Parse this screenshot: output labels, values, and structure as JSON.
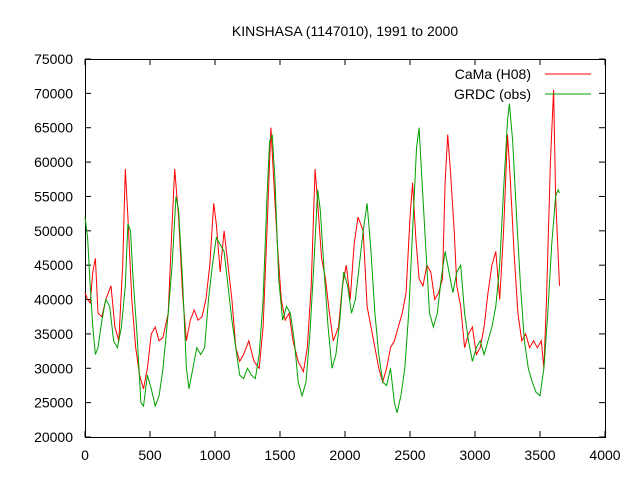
{
  "chart_data": {
    "type": "line",
    "title": "KINSHASA (1147010), 1991 to 2000",
    "xlabel": "",
    "ylabel": "",
    "xlim": [
      0,
      4000
    ],
    "ylim": [
      20000,
      75000
    ],
    "x_ticks": [
      0,
      500,
      1000,
      1500,
      2000,
      2500,
      3000,
      3500,
      4000
    ],
    "y_ticks": [
      20000,
      25000,
      30000,
      35000,
      40000,
      45000,
      50000,
      55000,
      60000,
      65000,
      70000,
      75000
    ],
    "grid": false,
    "legend_position": "top-right",
    "series": [
      {
        "name": "CaMa (H08)",
        "color": "#ff0000",
        "points": [
          [
            0,
            41000
          ],
          [
            20,
            40000
          ],
          [
            40,
            39500
          ],
          [
            60,
            44000
          ],
          [
            80,
            46000
          ],
          [
            100,
            38000
          ],
          [
            130,
            37500
          ],
          [
            160,
            40000
          ],
          [
            200,
            42000
          ],
          [
            230,
            36000
          ],
          [
            260,
            34000
          ],
          [
            290,
            45000
          ],
          [
            310,
            59000
          ],
          [
            330,
            52000
          ],
          [
            360,
            40000
          ],
          [
            390,
            33000
          ],
          [
            420,
            29000
          ],
          [
            450,
            27000
          ],
          [
            480,
            30000
          ],
          [
            510,
            35000
          ],
          [
            540,
            36000
          ],
          [
            570,
            34000
          ],
          [
            600,
            34500
          ],
          [
            640,
            38000
          ],
          [
            670,
            51000
          ],
          [
            690,
            59000
          ],
          [
            720,
            52000
          ],
          [
            750,
            41000
          ],
          [
            780,
            34000
          ],
          [
            810,
            37000
          ],
          [
            840,
            38500
          ],
          [
            870,
            37000
          ],
          [
            900,
            37500
          ],
          [
            930,
            40000
          ],
          [
            960,
            45000
          ],
          [
            990,
            54000
          ],
          [
            1010,
            51000
          ],
          [
            1040,
            44000
          ],
          [
            1070,
            50000
          ],
          [
            1100,
            45000
          ],
          [
            1130,
            40000
          ],
          [
            1160,
            33000
          ],
          [
            1190,
            31000
          ],
          [
            1220,
            32000
          ],
          [
            1260,
            34000
          ],
          [
            1300,
            31000
          ],
          [
            1340,
            30000
          ],
          [
            1370,
            36000
          ],
          [
            1400,
            50000
          ],
          [
            1430,
            65000
          ],
          [
            1450,
            58000
          ],
          [
            1480,
            48000
          ],
          [
            1510,
            40000
          ],
          [
            1540,
            37000
          ],
          [
            1570,
            38000
          ],
          [
            1600,
            34000
          ],
          [
            1640,
            31000
          ],
          [
            1680,
            29500
          ],
          [
            1710,
            33000
          ],
          [
            1740,
            42000
          ],
          [
            1770,
            59000
          ],
          [
            1790,
            54000
          ],
          [
            1820,
            46000
          ],
          [
            1850,
            43000
          ],
          [
            1880,
            38000
          ],
          [
            1910,
            34000
          ],
          [
            1950,
            36000
          ],
          [
            1980,
            42000
          ],
          [
            2010,
            45000
          ],
          [
            2040,
            40000
          ],
          [
            2070,
            48000
          ],
          [
            2100,
            52000
          ],
          [
            2140,
            50000
          ],
          [
            2170,
            39000
          ],
          [
            2200,
            36000
          ],
          [
            2230,
            33000
          ],
          [
            2260,
            30000
          ],
          [
            2290,
            28000
          ],
          [
            2320,
            30000
          ],
          [
            2350,
            33000
          ],
          [
            2380,
            34000
          ],
          [
            2410,
            36000
          ],
          [
            2440,
            38000
          ],
          [
            2470,
            41000
          ],
          [
            2500,
            52000
          ],
          [
            2520,
            57000
          ],
          [
            2545,
            49000
          ],
          [
            2570,
            43000
          ],
          [
            2600,
            42000
          ],
          [
            2630,
            45000
          ],
          [
            2660,
            44000
          ],
          [
            2690,
            40000
          ],
          [
            2720,
            41000
          ],
          [
            2750,
            43000
          ],
          [
            2770,
            57000
          ],
          [
            2790,
            64000
          ],
          [
            2810,
            59000
          ],
          [
            2840,
            50000
          ],
          [
            2860,
            42000
          ],
          [
            2890,
            39000
          ],
          [
            2920,
            33000
          ],
          [
            2950,
            35000
          ],
          [
            2980,
            36000
          ],
          [
            3010,
            32000
          ],
          [
            3040,
            33000
          ],
          [
            3070,
            36000
          ],
          [
            3100,
            41000
          ],
          [
            3130,
            45000
          ],
          [
            3160,
            47000
          ],
          [
            3190,
            40000
          ],
          [
            3220,
            50000
          ],
          [
            3250,
            64000
          ],
          [
            3270,
            58000
          ],
          [
            3300,
            47000
          ],
          [
            3330,
            38000
          ],
          [
            3360,
            34000
          ],
          [
            3390,
            35000
          ],
          [
            3420,
            33000
          ],
          [
            3450,
            34000
          ],
          [
            3480,
            33000
          ],
          [
            3510,
            34000
          ],
          [
            3530,
            30000
          ],
          [
            3550,
            40000
          ],
          [
            3580,
            60000
          ],
          [
            3605,
            70500
          ],
          [
            3620,
            55000
          ],
          [
            3650,
            42000
          ]
        ]
      },
      {
        "name": "GRDC (obs)",
        "color": "#00a000",
        "points": [
          [
            0,
            52000
          ],
          [
            20,
            49000
          ],
          [
            40,
            42000
          ],
          [
            60,
            36000
          ],
          [
            80,
            32000
          ],
          [
            100,
            33000
          ],
          [
            130,
            37000
          ],
          [
            160,
            40000
          ],
          [
            190,
            39000
          ],
          [
            220,
            34000
          ],
          [
            250,
            33000
          ],
          [
            280,
            36000
          ],
          [
            310,
            42000
          ],
          [
            330,
            51000
          ],
          [
            350,
            50000
          ],
          [
            370,
            43000
          ],
          [
            400,
            35000
          ],
          [
            430,
            25000
          ],
          [
            450,
            24500
          ],
          [
            480,
            29000
          ],
          [
            510,
            27000
          ],
          [
            540,
            24500
          ],
          [
            570,
            26000
          ],
          [
            600,
            30000
          ],
          [
            640,
            38000
          ],
          [
            670,
            45000
          ],
          [
            700,
            55000
          ],
          [
            720,
            53000
          ],
          [
            750,
            43000
          ],
          [
            780,
            30000
          ],
          [
            800,
            27000
          ],
          [
            830,
            30000
          ],
          [
            860,
            33000
          ],
          [
            890,
            32000
          ],
          [
            920,
            33000
          ],
          [
            950,
            40000
          ],
          [
            980,
            45000
          ],
          [
            1010,
            49000
          ],
          [
            1040,
            48000
          ],
          [
            1070,
            47000
          ],
          [
            1100,
            42000
          ],
          [
            1130,
            37000
          ],
          [
            1160,
            33000
          ],
          [
            1190,
            29000
          ],
          [
            1220,
            28500
          ],
          [
            1250,
            30000
          ],
          [
            1280,
            29000
          ],
          [
            1310,
            28500
          ],
          [
            1340,
            32000
          ],
          [
            1370,
            40000
          ],
          [
            1400,
            55000
          ],
          [
            1420,
            63000
          ],
          [
            1440,
            64000
          ],
          [
            1460,
            58000
          ],
          [
            1490,
            43000
          ],
          [
            1520,
            37000
          ],
          [
            1550,
            39000
          ],
          [
            1580,
            38000
          ],
          [
            1610,
            34000
          ],
          [
            1640,
            28000
          ],
          [
            1670,
            26000
          ],
          [
            1700,
            28000
          ],
          [
            1730,
            35000
          ],
          [
            1760,
            45000
          ],
          [
            1790,
            56000
          ],
          [
            1810,
            53000
          ],
          [
            1840,
            44000
          ],
          [
            1870,
            36000
          ],
          [
            1900,
            30000
          ],
          [
            1930,
            32000
          ],
          [
            1960,
            37000
          ],
          [
            1990,
            44000
          ],
          [
            2020,
            42000
          ],
          [
            2050,
            38000
          ],
          [
            2080,
            40000
          ],
          [
            2110,
            45000
          ],
          [
            2140,
            50000
          ],
          [
            2170,
            54000
          ],
          [
            2200,
            47000
          ],
          [
            2230,
            38000
          ],
          [
            2260,
            32000
          ],
          [
            2290,
            28000
          ],
          [
            2320,
            27500
          ],
          [
            2350,
            30000
          ],
          [
            2380,
            25000
          ],
          [
            2400,
            23500
          ],
          [
            2430,
            26000
          ],
          [
            2460,
            30000
          ],
          [
            2490,
            38000
          ],
          [
            2520,
            50000
          ],
          [
            2550,
            62000
          ],
          [
            2570,
            65000
          ],
          [
            2590,
            58000
          ],
          [
            2620,
            48000
          ],
          [
            2650,
            38000
          ],
          [
            2680,
            36000
          ],
          [
            2710,
            38000
          ],
          [
            2740,
            43000
          ],
          [
            2770,
            47000
          ],
          [
            2800,
            44000
          ],
          [
            2830,
            41000
          ],
          [
            2860,
            44000
          ],
          [
            2890,
            45000
          ],
          [
            2920,
            38000
          ],
          [
            2950,
            34000
          ],
          [
            2980,
            31000
          ],
          [
            3010,
            33000
          ],
          [
            3040,
            34000
          ],
          [
            3070,
            32000
          ],
          [
            3100,
            34000
          ],
          [
            3130,
            36000
          ],
          [
            3160,
            39000
          ],
          [
            3190,
            45000
          ],
          [
            3220,
            56000
          ],
          [
            3250,
            66000
          ],
          [
            3265,
            68500
          ],
          [
            3290,
            63000
          ],
          [
            3320,
            52000
          ],
          [
            3350,
            42000
          ],
          [
            3380,
            34000
          ],
          [
            3410,
            30000
          ],
          [
            3440,
            28000
          ],
          [
            3470,
            26500
          ],
          [
            3500,
            26000
          ],
          [
            3530,
            30000
          ],
          [
            3560,
            38000
          ],
          [
            3590,
            48000
          ],
          [
            3620,
            55000
          ],
          [
            3640,
            56000
          ],
          [
            3650,
            55500
          ]
        ]
      }
    ]
  }
}
